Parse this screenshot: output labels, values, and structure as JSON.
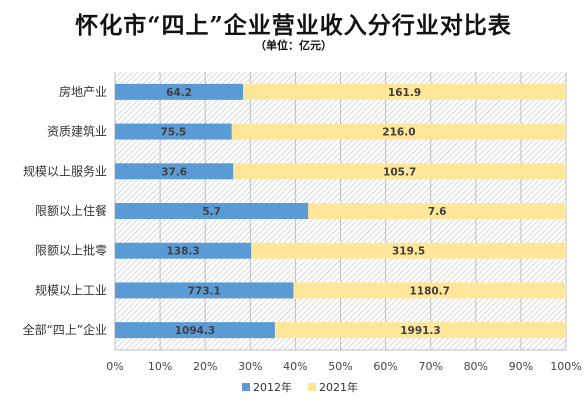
{
  "chart_data": {
    "type": "bar",
    "orientation": "horizontal",
    "stacking": "percent",
    "title": "怀化市“四上”企业营业收入分行业对比表",
    "subtitle": "（单位：亿元）",
    "categories": [
      "房地产业",
      "资质建筑业",
      "规模以上服务业",
      "限额以上住餐",
      "限额以上批零",
      "规模以上工业",
      "全部“四上”企业"
    ],
    "series": [
      {
        "name": "2012年",
        "values": [
          64.2,
          75.5,
          37.6,
          5.7,
          138.3,
          773.1,
          1094.3
        ],
        "color": "#5b9bd5"
      },
      {
        "name": "2021年",
        "values": [
          161.9,
          216.0,
          105.7,
          7.6,
          319.5,
          1180.7,
          1991.3
        ],
        "color": "#ffe699"
      }
    ],
    "value_labels": {
      "2012年": [
        "64.2",
        "75.5",
        "37.6",
        "5.7",
        "138.3",
        "773.1",
        "1094.3"
      ],
      "2021年": [
        "161.9",
        "216.0",
        "105.7",
        "7.6",
        "319.5",
        "1180.7",
        "1991.3"
      ]
    },
    "x_ticks": [
      "0%",
      "10%",
      "20%",
      "30%",
      "40%",
      "50%",
      "60%",
      "70%",
      "80%",
      "90%",
      "100%"
    ],
    "xlim": [
      0,
      100
    ],
    "grid": true,
    "legend_position": "bottom"
  }
}
